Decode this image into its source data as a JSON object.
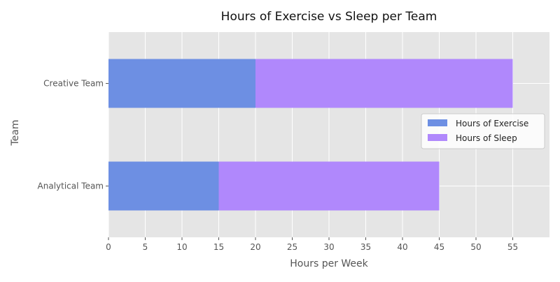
{
  "chart_data": {
    "type": "bar",
    "orientation": "horizontal",
    "stacked": true,
    "title": "Hours of Exercise vs Sleep per Team",
    "xlabel": "Hours per Week",
    "ylabel": "Team",
    "categories": [
      "Analytical Team",
      "Creative Team"
    ],
    "series": [
      {
        "name": "Hours of Exercise",
        "values": [
          15,
          20
        ],
        "color": "#6d8fe3"
      },
      {
        "name": "Hours of Sleep",
        "values": [
          30,
          35
        ],
        "color": "#b088fc"
      }
    ],
    "xlim": [
      0,
      60
    ],
    "xticks": [
      0,
      5,
      10,
      15,
      20,
      25,
      30,
      35,
      40,
      45,
      50,
      55
    ],
    "grid": true,
    "legend_position": "center-right",
    "background_color": "#e5e5e5",
    "grid_color": "#ffffff"
  }
}
